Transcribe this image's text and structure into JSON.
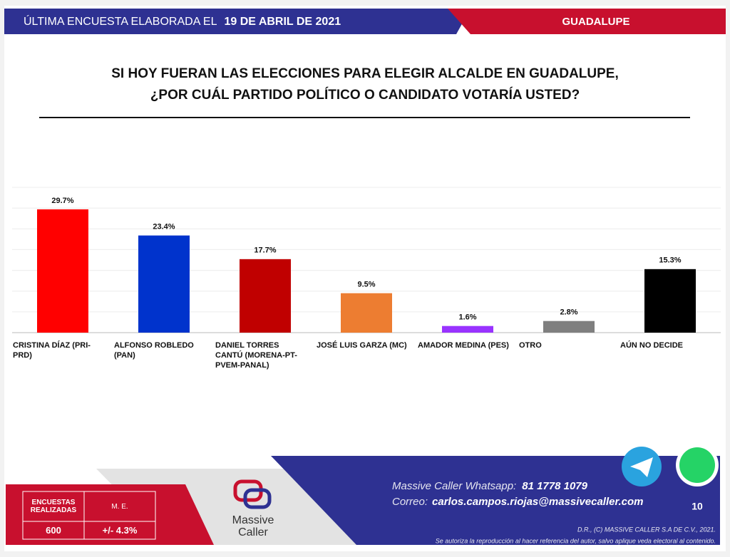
{
  "header": {
    "prefix": "ÚLTIMA ENCUESTA ELABORADA EL",
    "date": "19 DE ABRIL DE 2021",
    "region": "GUADALUPE"
  },
  "chart_data": {
    "type": "bar",
    "title_lines": [
      "SI HOY FUERAN LAS ELECCIONES PARA ELEGIR ALCALDE EN GUADALUPE,",
      "¿POR CUÁL PARTIDO POLÍTICO O CANDIDATO VOTARÍA USTED?"
    ],
    "categories": [
      "CRISTINA DÍAZ (PRI-PRD)",
      "ALFONSO ROBLEDO (PAN)",
      "DANIEL TORRES CANTÚ (MORENA-PT-PVEM-PANAL)",
      "JOSÉ LUIS GARZA (MC)",
      "AMADOR MEDINA (PES)",
      "OTRO",
      "AÚN NO DECIDE"
    ],
    "values": [
      29.7,
      23.4,
      17.7,
      9.5,
      1.6,
      2.8,
      15.3
    ],
    "value_labels": [
      "29.7%",
      "23.4%",
      "17.7%",
      "9.5%",
      "1.6%",
      "2.8%",
      "15.3%"
    ],
    "colors": [
      "#ff0000",
      "#0033cc",
      "#c00000",
      "#ed7d31",
      "#9933ff",
      "#7f7f7f",
      "#000000"
    ],
    "ylim": [
      0,
      35
    ],
    "yticks": [
      0,
      5,
      10,
      15,
      20,
      25,
      30,
      35
    ],
    "show_tick_labels": false,
    "grid": true
  },
  "footer": {
    "surveys_label": "ENCUESTAS REALIZADAS",
    "surveys": "600",
    "margin_label": "M. E.",
    "margin": "+/- 4.3%",
    "logo_line1": "Massive",
    "logo_line2": "Caller",
    "whatsapp_label": "Massive Caller Whatsapp:",
    "whatsapp": "81 1778 1079",
    "email_label": "Correo:",
    "email": "carlos.campos.riojas@massivecaller.com",
    "page": "10",
    "copyright": "D.R., (C) MASSIVE CALLER S.A DE C.V., 2021.",
    "notice": "Se autoriza la reproducción al hacer referencia del autor, salvo aplique veda electoral al contenido."
  }
}
